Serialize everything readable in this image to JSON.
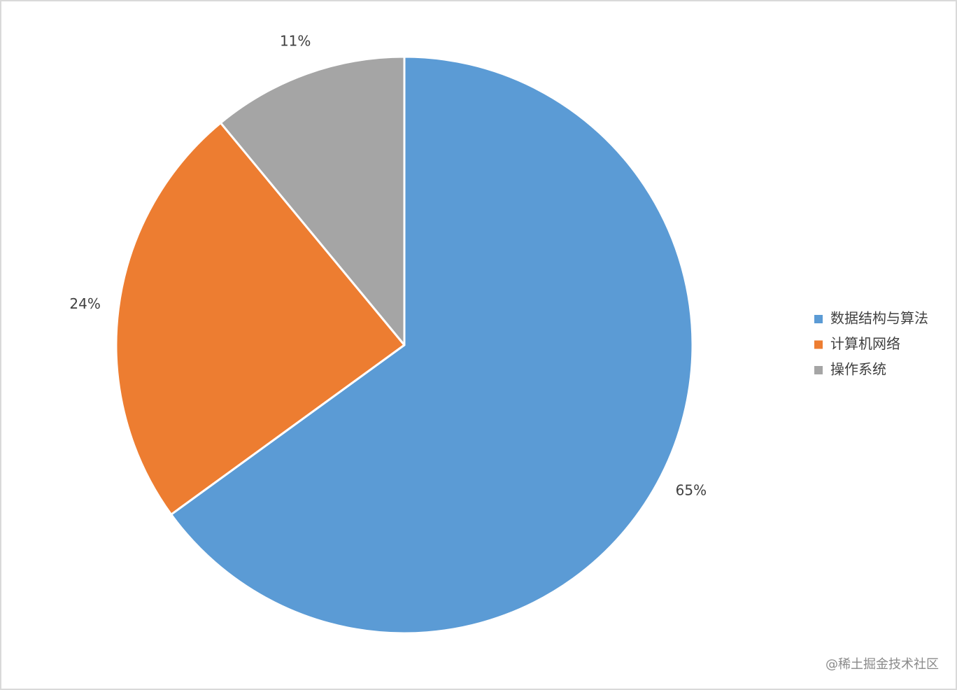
{
  "chart_data": {
    "type": "pie",
    "categories": [
      "数据结构与算法",
      "计算机网络",
      "操作系统"
    ],
    "values": [
      65,
      24,
      11
    ],
    "value_labels": [
      "65%",
      "24%",
      "11%"
    ],
    "colors": [
      "#5b9bd5",
      "#ed7d31",
      "#a5a5a5"
    ],
    "legend": "right"
  },
  "watermark": "@稀土掘金技术社区"
}
